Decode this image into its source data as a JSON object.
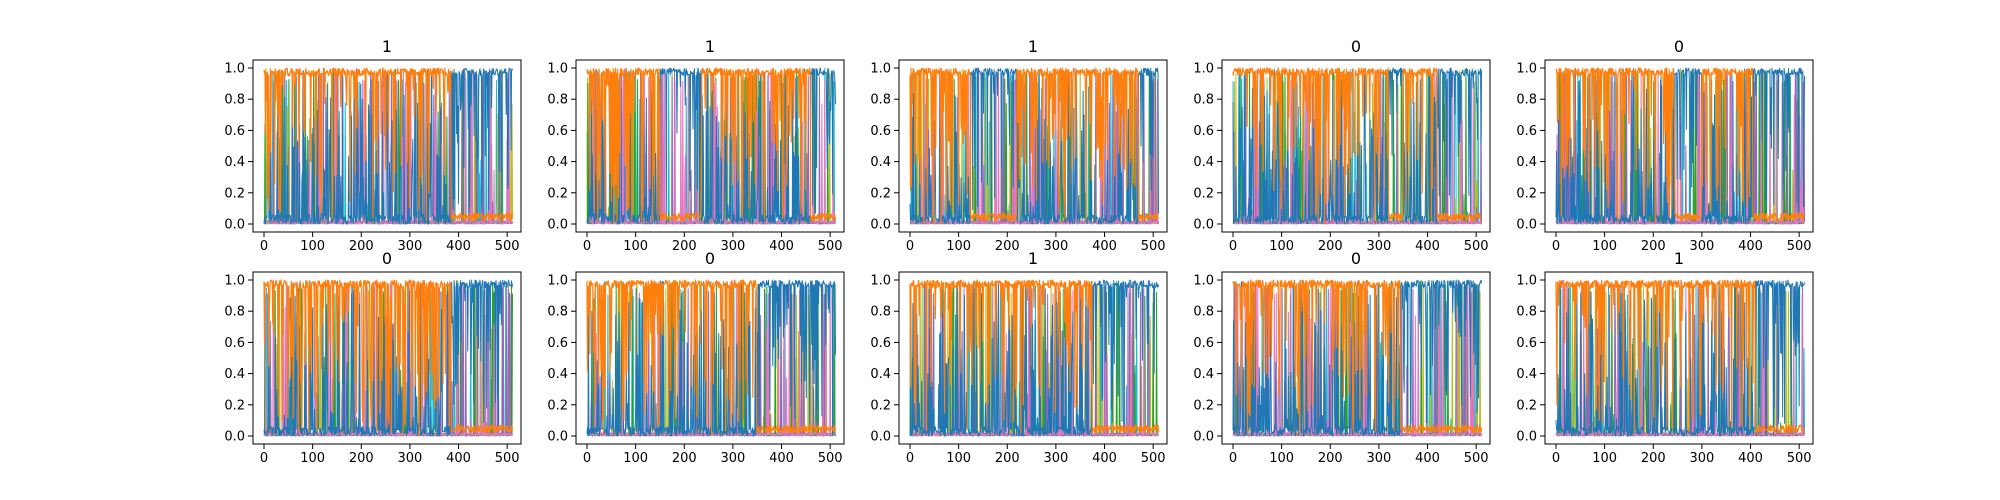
{
  "figure": {
    "layout": {
      "rows": 2,
      "cols": 5
    },
    "series_colors": [
      "#1f77b4",
      "#ff7f0e",
      "#17becf",
      "#bcbd22",
      "#2ca02c",
      "#9467bd",
      "#e377c2"
    ]
  },
  "chart_data": [
    {
      "type": "line",
      "title": "1",
      "xlim": [
        0,
        512
      ],
      "ylim": [
        0,
        1
      ],
      "xticks": [
        "0",
        "100",
        "200",
        "300",
        "400",
        "500"
      ],
      "yticks": [
        "0.0",
        "0.2",
        "0.4",
        "0.6",
        "0.8",
        "1.0"
      ],
      "dominant": [
        {
          "range": [
            0,
            385
          ],
          "series": 1
        },
        {
          "range": [
            385,
            512
          ],
          "series": 0
        }
      ]
    },
    {
      "type": "line",
      "title": "1",
      "xlim": [
        0,
        512
      ],
      "ylim": [
        0,
        1
      ],
      "xticks": [
        "0",
        "100",
        "200",
        "300",
        "400",
        "500"
      ],
      "yticks": [
        "0.0",
        "0.2",
        "0.4",
        "0.6",
        "0.8",
        "1.0"
      ],
      "dominant": [
        {
          "range": [
            0,
            150
          ],
          "series": 1
        },
        {
          "range": [
            150,
            235
          ],
          "series": 0
        },
        {
          "range": [
            235,
            460
          ],
          "series": 1
        },
        {
          "range": [
            460,
            512
          ],
          "series": 0
        }
      ]
    },
    {
      "type": "line",
      "title": "1",
      "xlim": [
        0,
        512
      ],
      "ylim": [
        0,
        1
      ],
      "xticks": [
        "0",
        "100",
        "200",
        "300",
        "400",
        "500"
      ],
      "yticks": [
        "0.0",
        "0.2",
        "0.4",
        "0.6",
        "0.8",
        "1.0"
      ],
      "dominant": [
        {
          "range": [
            0,
            125
          ],
          "series": 1
        },
        {
          "range": [
            125,
            220
          ],
          "series": 0
        },
        {
          "range": [
            220,
            470
          ],
          "series": 1
        },
        {
          "range": [
            470,
            512
          ],
          "series": 0
        }
      ]
    },
    {
      "type": "line",
      "title": "0",
      "xlim": [
        0,
        512
      ],
      "ylim": [
        0,
        1
      ],
      "xticks": [
        "0",
        "100",
        "200",
        "300",
        "400",
        "500"
      ],
      "yticks": [
        "0.0",
        "0.2",
        "0.4",
        "0.6",
        "0.8",
        "1.0"
      ],
      "dominant": [
        {
          "range": [
            0,
            320
          ],
          "series": 1
        },
        {
          "range": [
            320,
            350
          ],
          "series": 0
        },
        {
          "range": [
            350,
            420
          ],
          "series": 1
        },
        {
          "range": [
            420,
            512
          ],
          "series": 0
        }
      ]
    },
    {
      "type": "line",
      "title": "0",
      "xlim": [
        0,
        512
      ],
      "ylim": [
        0,
        1
      ],
      "xticks": [
        "0",
        "100",
        "200",
        "300",
        "400",
        "500"
      ],
      "yticks": [
        "0.0",
        "0.2",
        "0.4",
        "0.6",
        "0.8",
        "1.0"
      ],
      "dominant": [
        {
          "range": [
            0,
            245
          ],
          "series": 1
        },
        {
          "range": [
            245,
            300
          ],
          "series": 0
        },
        {
          "range": [
            300,
            405
          ],
          "series": 1
        },
        {
          "range": [
            405,
            512
          ],
          "series": 0
        }
      ]
    },
    {
      "type": "line",
      "title": "0",
      "xlim": [
        0,
        512
      ],
      "ylim": [
        0,
        1
      ],
      "xticks": [
        "0",
        "100",
        "200",
        "300",
        "400",
        "500"
      ],
      "yticks": [
        "0.0",
        "0.2",
        "0.4",
        "0.6",
        "0.8",
        "1.0"
      ],
      "dominant": [
        {
          "range": [
            0,
            385
          ],
          "series": 1
        },
        {
          "range": [
            385,
            512
          ],
          "series": 0
        }
      ]
    },
    {
      "type": "line",
      "title": "0",
      "xlim": [
        0,
        512
      ],
      "ylim": [
        0,
        1
      ],
      "xticks": [
        "0",
        "100",
        "200",
        "300",
        "400",
        "500"
      ],
      "yticks": [
        "0.0",
        "0.2",
        "0.4",
        "0.6",
        "0.8",
        "1.0"
      ],
      "dominant": [
        {
          "range": [
            0,
            350
          ],
          "series": 1
        },
        {
          "range": [
            350,
            512
          ],
          "series": 0
        }
      ]
    },
    {
      "type": "line",
      "title": "1",
      "xlim": [
        0,
        512
      ],
      "ylim": [
        0,
        1
      ],
      "xticks": [
        "0",
        "100",
        "200",
        "300",
        "400",
        "500"
      ],
      "yticks": [
        "0.0",
        "0.2",
        "0.4",
        "0.6",
        "0.8",
        "1.0"
      ],
      "dominant": [
        {
          "range": [
            0,
            375
          ],
          "series": 1
        },
        {
          "range": [
            375,
            512
          ],
          "series": 0
        }
      ]
    },
    {
      "type": "line",
      "title": "0",
      "xlim": [
        0,
        512
      ],
      "ylim": [
        0,
        1
      ],
      "xticks": [
        "0",
        "100",
        "200",
        "300",
        "400",
        "500"
      ],
      "yticks": [
        "0.0",
        "0.2",
        "0.4",
        "0.6",
        "0.8",
        "1.0"
      ],
      "dominant": [
        {
          "range": [
            0,
            345
          ],
          "series": 1
        },
        {
          "range": [
            345,
            512
          ],
          "series": 0
        }
      ]
    },
    {
      "type": "line",
      "title": "1",
      "xlim": [
        0,
        512
      ],
      "ylim": [
        0,
        1
      ],
      "xticks": [
        "0",
        "100",
        "200",
        "300",
        "400",
        "500"
      ],
      "yticks": [
        "0.0",
        "0.2",
        "0.4",
        "0.6",
        "0.8",
        "1.0"
      ],
      "dominant": [
        {
          "range": [
            0,
            410
          ],
          "series": 1
        },
        {
          "range": [
            410,
            512
          ],
          "series": 0
        }
      ]
    }
  ]
}
